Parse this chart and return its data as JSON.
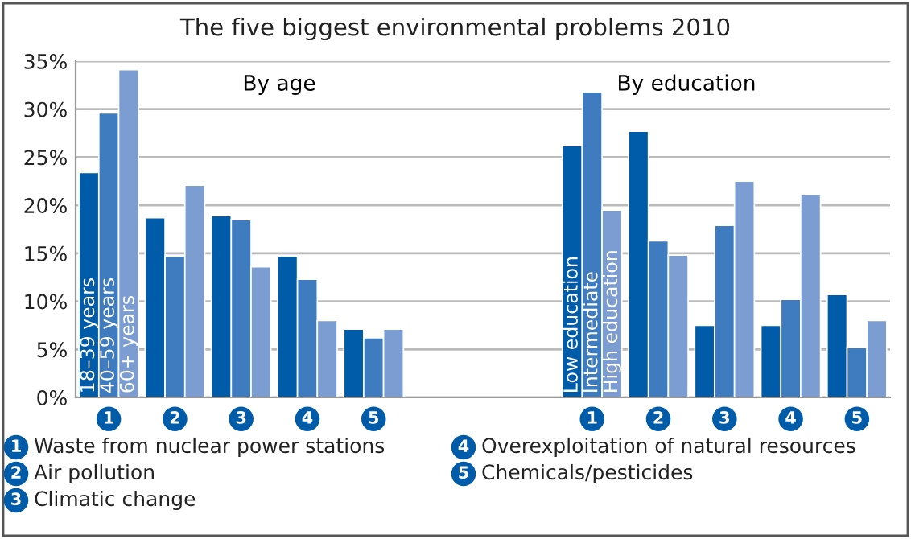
{
  "chart_data": [
    {
      "type": "bar",
      "title": "The five biggest environmental problems 2010",
      "annotations": [
        "By age",
        "Waste from nuclear power stations",
        "Air pollution",
        "Climatic change",
        "Overexploitation of natural resources",
        "Chemicals/pesticides"
      ],
      "categories": [
        "1",
        "2",
        "3",
        "4",
        "5"
      ],
      "series": [
        {
          "name": "18–39 years",
          "color": "#005ca9",
          "values": [
            23.4,
            18.7,
            18.9,
            14.7,
            7.1
          ]
        },
        {
          "name": "40–59 years",
          "color": "#3f7cbf",
          "values": [
            29.6,
            14.7,
            18.5,
            12.3,
            6.2
          ]
        },
        {
          "name": "60+ years",
          "color": "#7c9dd1",
          "values": [
            34.1,
            22.1,
            13.6,
            8.0,
            7.1
          ]
        }
      ],
      "ylim": [
        0,
        35
      ],
      "yticks": [
        {
          "value": 0,
          "label": "0%"
        },
        {
          "value": 5,
          "label": "5%"
        },
        {
          "value": 10,
          "label": "10%"
        },
        {
          "value": 15,
          "label": "15%"
        },
        {
          "value": 20,
          "label": "20%"
        },
        {
          "value": 25,
          "label": "25%"
        },
        {
          "value": 30,
          "label": "30%"
        },
        {
          "value": 35,
          "label": "35%"
        }
      ],
      "grid": "y",
      "legend": false
    },
    {
      "type": "bar",
      "annotations": [
        "By education"
      ],
      "categories": [
        "1",
        "2",
        "3",
        "4",
        "5"
      ],
      "series": [
        {
          "name": "Low education",
          "color": "#005ca9",
          "values": [
            26.2,
            27.7,
            7.5,
            7.5,
            10.7
          ]
        },
        {
          "name": "Intermediate",
          "color": "#3f7cbf",
          "values": [
            31.8,
            16.3,
            17.9,
            10.2,
            5.2
          ]
        },
        {
          "name": "High education",
          "color": "#7c9dd1",
          "values": [
            19.5,
            14.8,
            22.5,
            21.1,
            8.0
          ]
        }
      ],
      "ylim": [
        0,
        35
      ],
      "yticks": [
        0,
        5,
        10,
        15,
        20,
        25,
        30,
        35
      ],
      "tick_labels": "x",
      "grid": "y",
      "legend": false
    }
  ]
}
